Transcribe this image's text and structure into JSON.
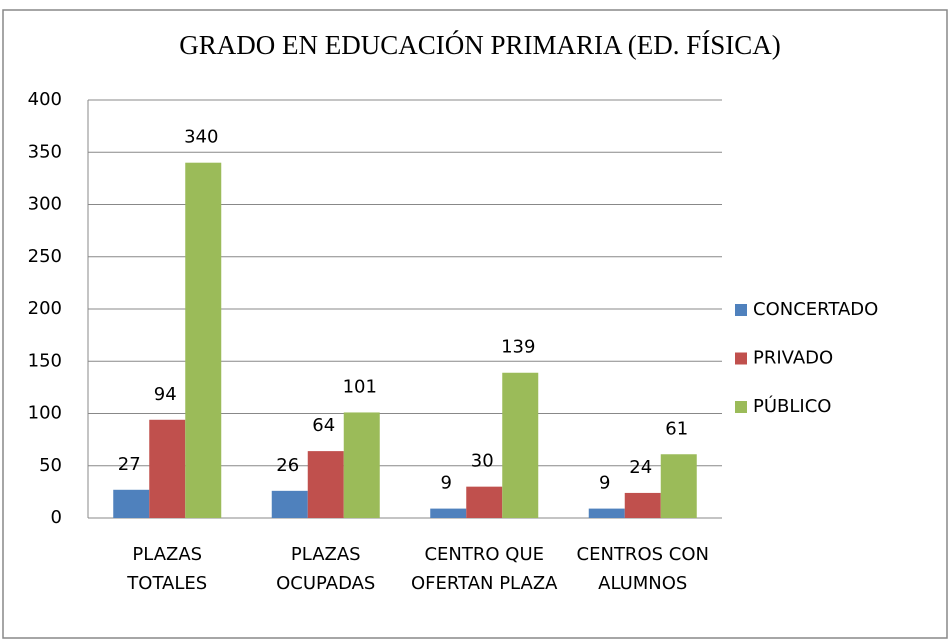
{
  "chart_data": {
    "type": "bar",
    "title": "GRADO EN EDUCACIÓN PRIMARIA (ED. FÍSICA)",
    "categories": [
      "PLAZAS TOTALES",
      "PLAZAS OCUPADAS",
      "CENTRO QUE OFERTAN PLAZA",
      "CENTROS CON ALUMNOS"
    ],
    "series": [
      {
        "name": "CONCERTADO",
        "color": "#4f81bd",
        "values": [
          27,
          26,
          9,
          9
        ]
      },
      {
        "name": "PRIVADO",
        "color": "#c0504d",
        "values": [
          94,
          64,
          30,
          24
        ]
      },
      {
        "name": "PÚBLICO",
        "color": "#9bbb59",
        "values": [
          340,
          101,
          139,
          61
        ]
      }
    ],
    "ylim": [
      0,
      400
    ],
    "yticks": [
      0,
      50,
      100,
      150,
      200,
      250,
      300,
      350,
      400
    ],
    "grid": true,
    "legend": "right"
  }
}
